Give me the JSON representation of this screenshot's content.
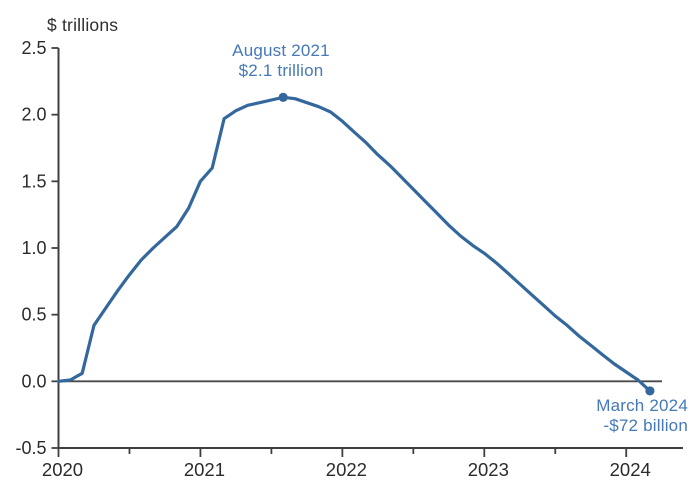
{
  "page": {
    "background": "#ffffff"
  },
  "chart": {
    "unit_label": "$ trillions",
    "colors": {
      "line": "#34689d",
      "marker": "#34689d",
      "annotation_text": "#4579b8",
      "axis": "#3f3f3f",
      "zero_line": "#4a4a4a",
      "tick_label": "#2b2b2b"
    },
    "annotations": {
      "peak": {
        "line1": "August 2021",
        "line2": "$2.1 trillion"
      },
      "trough": {
        "line1": "March 2024",
        "line2": "-$72 billion"
      }
    }
  },
  "chart_data": {
    "type": "line",
    "title": "",
    "ylabel": "$ trillions",
    "xlabel": "",
    "grid": false,
    "legend": "none",
    "frequency": "monthly",
    "x_range_labels": [
      "Jan 2020",
      "Mar 2024"
    ],
    "xlim": [
      2020,
      2024.4
    ],
    "ylim": [
      -0.5,
      2.5
    ],
    "y_ticks": [
      -0.5,
      0.0,
      0.5,
      1.0,
      1.5,
      2.0,
      2.5
    ],
    "y_tick_labels": [
      "-0.5",
      "0.0",
      "0.5",
      "1.0",
      "1.5",
      "2.0",
      "2.5"
    ],
    "x_major_ticks": [
      2020,
      2021,
      2022,
      2023,
      2024
    ],
    "x_tick_labels": [
      "2020",
      "2021",
      "2022",
      "2023",
      "2024"
    ],
    "x_minor_ticks": [
      2020.5,
      2021.5,
      2022.5,
      2023.5
    ],
    "zero_line": true,
    "points": [
      [
        2020.0,
        0.0
      ],
      [
        2020.083,
        0.01
      ],
      [
        2020.167,
        0.06
      ],
      [
        2020.25,
        0.42
      ],
      [
        2020.333,
        0.55
      ],
      [
        2020.417,
        0.68
      ],
      [
        2020.5,
        0.8
      ],
      [
        2020.583,
        0.91
      ],
      [
        2020.667,
        1.0
      ],
      [
        2020.75,
        1.08
      ],
      [
        2020.833,
        1.16
      ],
      [
        2020.917,
        1.3
      ],
      [
        2021.0,
        1.5
      ],
      [
        2021.083,
        1.6
      ],
      [
        2021.167,
        1.97
      ],
      [
        2021.25,
        2.03
      ],
      [
        2021.333,
        2.07
      ],
      [
        2021.417,
        2.09
      ],
      [
        2021.5,
        2.11
      ],
      [
        2021.583,
        2.13
      ],
      [
        2021.667,
        2.12
      ],
      [
        2021.75,
        2.09
      ],
      [
        2021.833,
        2.06
      ],
      [
        2021.917,
        2.02
      ],
      [
        2022.0,
        1.95
      ],
      [
        2022.083,
        1.87
      ],
      [
        2022.167,
        1.79
      ],
      [
        2022.25,
        1.7
      ],
      [
        2022.333,
        1.62
      ],
      [
        2022.417,
        1.53
      ],
      [
        2022.5,
        1.44
      ],
      [
        2022.583,
        1.35
      ],
      [
        2022.667,
        1.26
      ],
      [
        2022.75,
        1.17
      ],
      [
        2022.833,
        1.09
      ],
      [
        2022.917,
        1.02
      ],
      [
        2023.0,
        0.96
      ],
      [
        2023.083,
        0.89
      ],
      [
        2023.167,
        0.81
      ],
      [
        2023.25,
        0.73
      ],
      [
        2023.333,
        0.65
      ],
      [
        2023.417,
        0.57
      ],
      [
        2023.5,
        0.49
      ],
      [
        2023.583,
        0.42
      ],
      [
        2023.667,
        0.34
      ],
      [
        2023.75,
        0.27
      ],
      [
        2023.833,
        0.2
      ],
      [
        2023.917,
        0.13
      ],
      [
        2024.0,
        0.07
      ],
      [
        2024.083,
        0.01
      ],
      [
        2024.167,
        -0.072
      ]
    ],
    "markers": [
      {
        "x": 2021.583,
        "y": 2.13,
        "label": "August 2021 $2.1 trillion"
      },
      {
        "x": 2024.167,
        "y": -0.072,
        "label": "March 2024 -$72 billion"
      }
    ]
  }
}
